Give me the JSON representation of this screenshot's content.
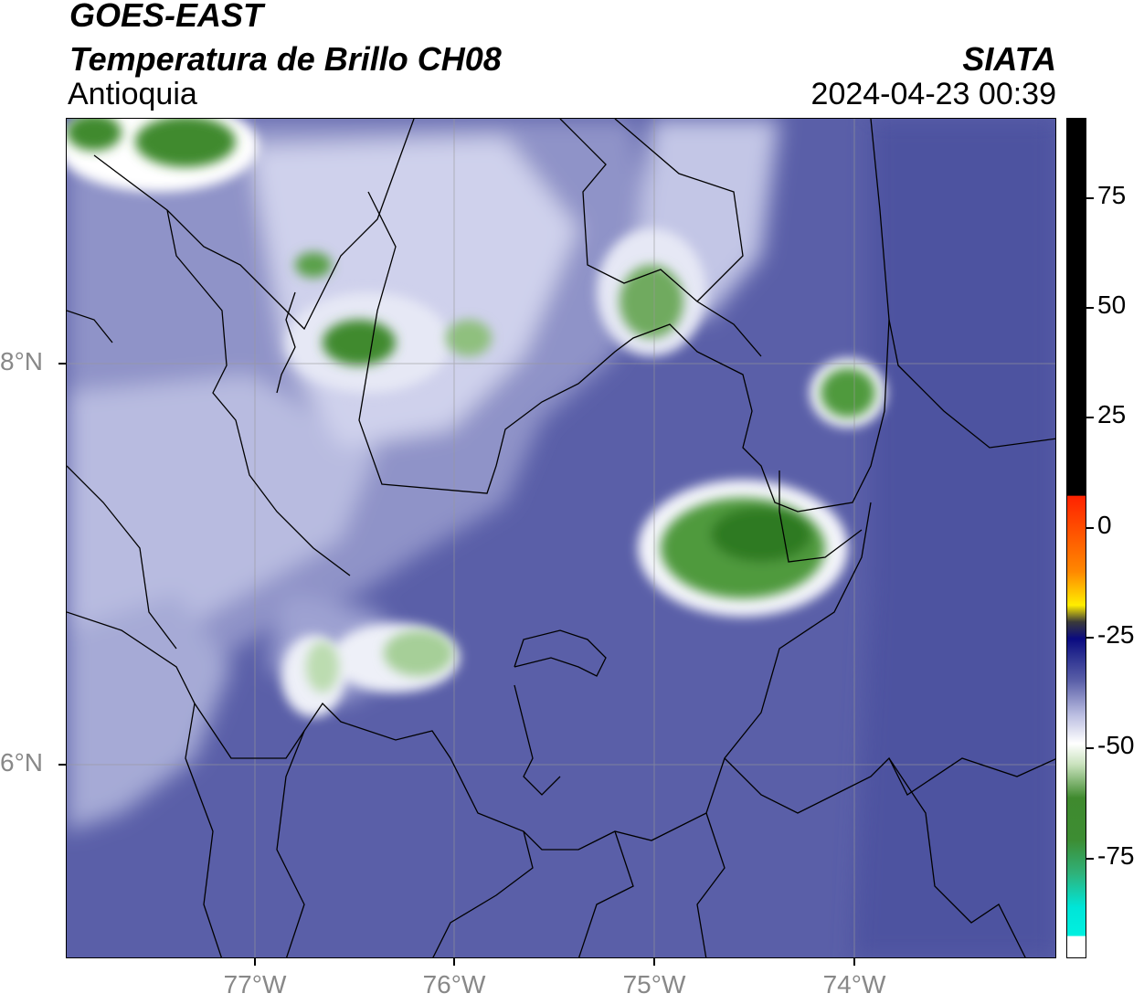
{
  "header": {
    "satellite": "GOES-EAST",
    "product": "Temperatura de Brillo CH08",
    "region": "Antioquia",
    "agency": "SIATA",
    "datetime": "2024-04-23 00:39"
  },
  "axes": {
    "lon_ticks": [
      "77°W",
      "76°W",
      "75°W",
      "74°W"
    ],
    "lat_ticks": [
      "8°N",
      "6°N"
    ]
  },
  "colorbar": {
    "ticks": [
      "75",
      "50",
      "25",
      "0",
      "-25",
      "-50",
      "-75"
    ],
    "colors": {
      "cold_cyan": "#00e5d8",
      "green": "#3f8a2e",
      "white": "#ffffff",
      "blue": "#4a4fa0",
      "navy": "#0a0a80",
      "yellow": "#ffee00",
      "orange": "#ff8800",
      "red": "#ff2200",
      "black": "#000000"
    }
  }
}
